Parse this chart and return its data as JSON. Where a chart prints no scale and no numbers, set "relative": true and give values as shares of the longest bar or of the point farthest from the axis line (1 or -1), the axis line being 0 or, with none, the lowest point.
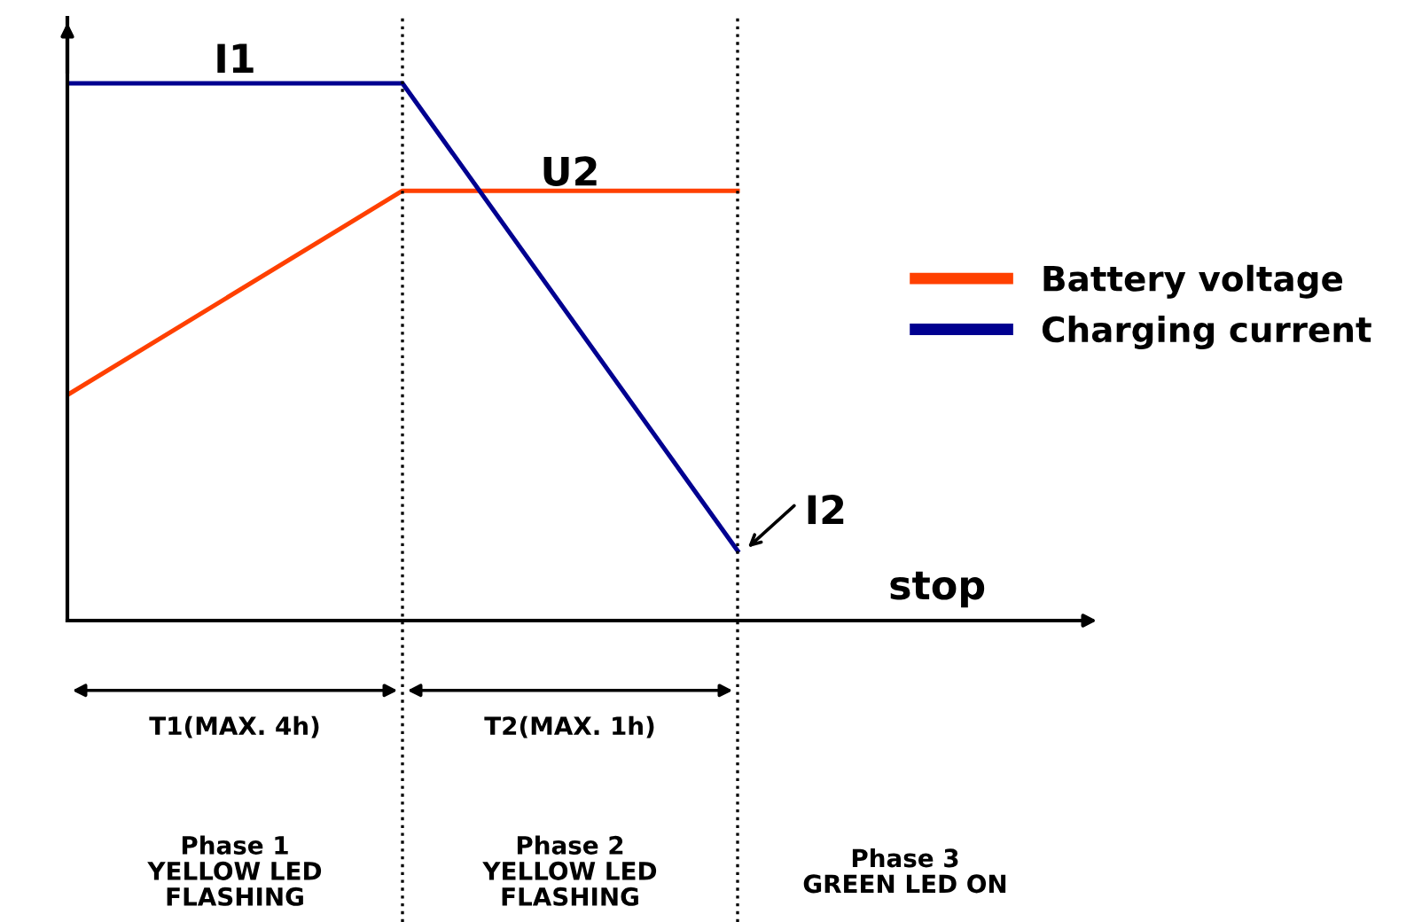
{
  "chart_data": {
    "type": "line",
    "relative": true,
    "categories": [
      null,
      null,
      null
    ],
    "series": [
      {
        "name": "Battery voltage",
        "color": "#ff4000",
        "values": [
          0.42,
          0.8,
          0.8
        ]
      },
      {
        "name": "Charging current",
        "color": "#000090",
        "values": [
          1,
          1,
          0.13
        ]
      }
    ],
    "legend": "right",
    "marker": "none",
    "line_style": "solid",
    "annotations": [
      "I1",
      "U2",
      "I2",
      "stop",
      "T1(MAX. 4h)",
      "T2(MAX. 1h)",
      "Phase 1\nYELLOW LED\nFLASHING",
      "Phase 2\nYELLOW LED\nFLASHING",
      "Phase 3\nGREEN LED ON"
    ]
  }
}
